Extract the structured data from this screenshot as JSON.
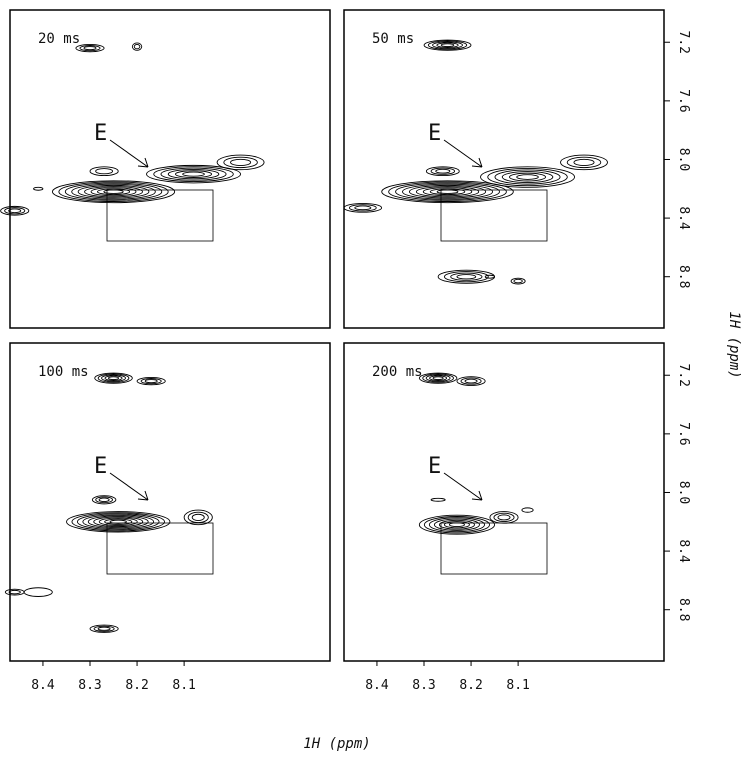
{
  "chart_data": {
    "type": "contour",
    "x_label": "1H (ppm)",
    "y_label": "1H (ppm)",
    "xlim": [
      8.47,
      7.79
    ],
    "ylim": [
      6.98,
      9.15
    ],
    "xticks": [
      8.4,
      8.3,
      8.2,
      8.1
    ],
    "yticks": [
      7.2,
      7.6,
      {
        "value": 8,
        "label": "8.0"
      },
      8.4,
      8.8
    ],
    "panels": [
      {
        "title": "20 ms",
        "annotation": "E"
      },
      {
        "title": "50 ms",
        "annotation": "E"
      },
      {
        "title": "100 ms",
        "annotation": "E"
      },
      {
        "title": "200 ms",
        "annotation": "E"
      }
    ]
  }
}
